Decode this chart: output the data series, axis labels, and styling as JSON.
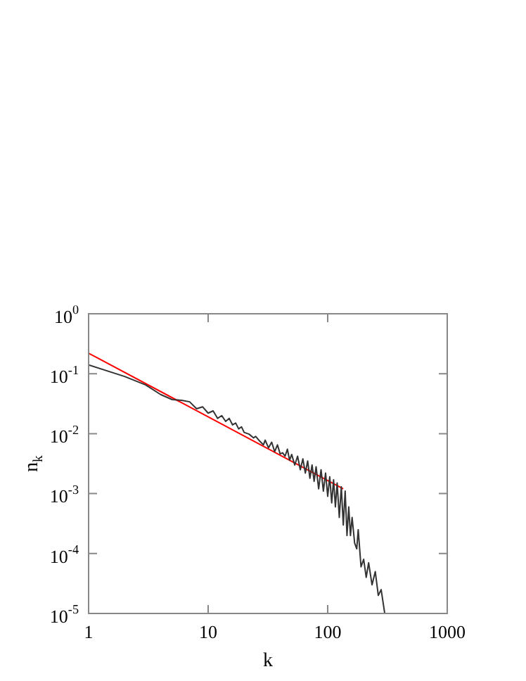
{
  "chart_data": {
    "type": "line",
    "xlabel": "k",
    "ylabel": "n$_{k}$",
    "log": "xy",
    "grid": false,
    "legend": false,
    "marker": "none",
    "line_style": "solid",
    "xlim": [
      1,
      1000
    ],
    "xticks": [
      1,
      10,
      100,
      1000
    ],
    "ylim": [
      1e-05,
      1
    ],
    "yticks": [
      {
        "value": 1,
        "label": "10$^{0}$"
      },
      {
        "value": 0.1,
        "label": "10$^{-1}$"
      },
      {
        "value": 0.01,
        "label": "10$^{-2}$"
      },
      {
        "value": 0.001,
        "label": "10$^{-3}$"
      },
      {
        "value": 0.0001,
        "label": "10$^{-4}$"
      },
      {
        "value": 1e-05,
        "label": "10$^{-5}$"
      }
    ],
    "series": [
      {
        "color": "#333333",
        "x": [
          1,
          2,
          3,
          4,
          5,
          6,
          7,
          8,
          9,
          10,
          11,
          12,
          13,
          14,
          15,
          16,
          17,
          18,
          19,
          20,
          22,
          24,
          25,
          27,
          29,
          30,
          32,
          34,
          36,
          38,
          40,
          42,
          44,
          46,
          48,
          50,
          53,
          56,
          59,
          62,
          65,
          68,
          71,
          74,
          77,
          80,
          84,
          88,
          92,
          96,
          100,
          104,
          108,
          112,
          116,
          120,
          125,
          130,
          135,
          140,
          145,
          150,
          155,
          160,
          168,
          175,
          180,
          190,
          200,
          210,
          220,
          235,
          250,
          265,
          280,
          300
        ],
        "values": [
          0.14,
          0.09,
          0.065,
          0.045,
          0.037,
          0.036,
          0.034,
          0.026,
          0.028,
          0.022,
          0.024,
          0.018,
          0.02,
          0.016,
          0.018,
          0.014,
          0.015,
          0.012,
          0.013,
          0.0105,
          0.0098,
          0.0085,
          0.009,
          0.0075,
          0.0065,
          0.0078,
          0.0058,
          0.0072,
          0.005,
          0.0065,
          0.0046,
          0.0048,
          0.0042,
          0.0055,
          0.0036,
          0.0045,
          0.003,
          0.0042,
          0.0025,
          0.0038,
          0.0022,
          0.0035,
          0.0018,
          0.003,
          0.0016,
          0.0028,
          0.0012,
          0.0025,
          0.0011,
          0.0022,
          0.0009,
          0.0019,
          0.0007,
          0.0017,
          0.0006,
          0.0015,
          0.0004,
          0.0013,
          0.0003,
          0.0011,
          0.0002,
          0.0006,
          0.0002,
          0.0004,
          0.00015,
          0.00012,
          0.00025,
          6e-05,
          8e-05,
          4e-05,
          7e-05,
          3e-05,
          5e-05,
          2e-05,
          2.5e-05,
          1e-05
        ]
      },
      {
        "color": "#ff0000",
        "x": [
          1,
          135
        ],
        "values": [
          0.22,
          0.0012
        ]
      }
    ]
  }
}
